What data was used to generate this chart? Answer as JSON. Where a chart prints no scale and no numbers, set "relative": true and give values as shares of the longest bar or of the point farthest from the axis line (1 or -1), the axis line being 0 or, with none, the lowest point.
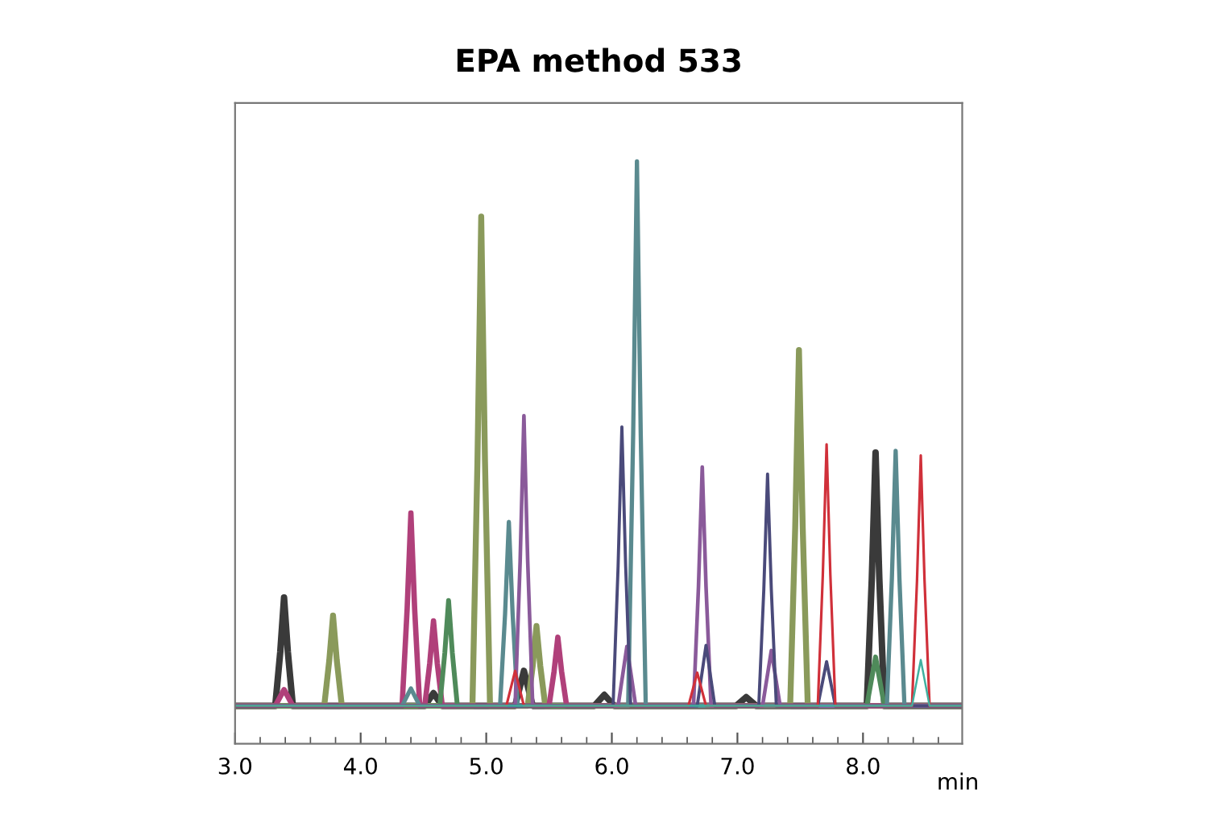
{
  "chart_data": {
    "type": "line",
    "title": "EPA method 533",
    "xlabel": "min",
    "relative": true,
    "xlim": [
      3.0,
      8.79
    ],
    "xticks": [
      {
        "value": 3,
        "label": "3.0"
      },
      {
        "value": 4,
        "label": "4.0"
      },
      {
        "value": 5,
        "label": "5.0"
      },
      {
        "value": 6,
        "label": "6.0"
      },
      {
        "value": 7,
        "label": "7.0"
      },
      {
        "value": 8,
        "label": "8.0"
      }
    ],
    "tick_labels": "x",
    "grid": false,
    "marker": "none",
    "line_style": "solid",
    "series": [
      {
        "color": "#3a3a3a",
        "x": [
          3.0,
          3.32,
          3.36,
          3.39,
          3.42,
          3.46,
          4.51,
          4.58,
          4.65,
          5.23,
          5.3,
          5.37,
          5.86,
          5.94,
          6.02,
          6.99,
          7.07,
          7.15,
          8.03,
          8.07,
          8.1,
          8.13,
          8.17,
          8.79
        ],
        "values": [
          0.065,
          0.065,
          0.158,
          0.251,
          0.158,
          0.065,
          0.065,
          0.087,
          0.065,
          0.065,
          0.125,
          0.065,
          0.065,
          0.084,
          0.065,
          0.065,
          0.08,
          0.065,
          0.065,
          0.283,
          0.5,
          0.283,
          0.065,
          0.065
        ]
      },
      {
        "color": "#8a9a5b",
        "x": [
          3.0,
          3.71,
          3.75,
          3.78,
          3.81,
          3.85,
          4.89,
          4.93,
          4.96,
          4.99,
          5.03,
          5.33,
          5.37,
          5.4,
          5.43,
          5.47,
          7.42,
          7.46,
          7.49,
          7.52,
          7.56,
          8.79
        ],
        "values": [
          0.065,
          0.065,
          0.143,
          0.22,
          0.143,
          0.065,
          0.065,
          0.485,
          0.905,
          0.485,
          0.065,
          0.065,
          0.134,
          0.202,
          0.134,
          0.065,
          0.065,
          0.371,
          0.676,
          0.371,
          0.065,
          0.065
        ]
      },
      {
        "color": "#b0407a",
        "x": [
          3.0,
          3.32,
          3.39,
          3.46,
          4.33,
          4.37,
          4.4,
          4.43,
          4.47,
          4.51,
          4.55,
          4.58,
          4.61,
          4.65,
          5.5,
          5.54,
          5.57,
          5.6,
          5.64,
          8.79
        ],
        "values": [
          0.065,
          0.065,
          0.093,
          0.065,
          0.065,
          0.231,
          0.396,
          0.231,
          0.065,
          0.065,
          0.138,
          0.211,
          0.138,
          0.065,
          0.065,
          0.124,
          0.183,
          0.124,
          0.065,
          0.065
        ]
      },
      {
        "color": "#4f8a5a",
        "x": [
          3.0,
          4.63,
          4.67,
          4.7,
          4.73,
          4.77,
          8.03,
          8.1,
          8.17,
          8.79
        ],
        "values": [
          0.065,
          0.065,
          0.156,
          0.246,
          0.156,
          0.065,
          0.065,
          0.149,
          0.065,
          0.065
        ]
      },
      {
        "color": "#5a8a8f",
        "x": [
          3.0,
          4.33,
          4.4,
          4.47,
          5.11,
          5.15,
          5.18,
          5.21,
          5.25,
          6.13,
          6.17,
          6.2,
          6.23,
          6.27,
          8.19,
          8.23,
          8.26,
          8.29,
          8.33,
          8.79
        ],
        "values": [
          0.065,
          0.065,
          0.095,
          0.065,
          0.065,
          0.223,
          0.381,
          0.223,
          0.065,
          0.065,
          0.533,
          1.0,
          0.533,
          0.065,
          0.065,
          0.284,
          0.503,
          0.284,
          0.065,
          0.065
        ]
      },
      {
        "color": "#8a5a9a",
        "x": [
          3.0,
          5.23,
          5.27,
          5.3,
          5.33,
          5.37,
          6.05,
          6.12,
          6.19,
          6.65,
          6.69,
          6.72,
          6.75,
          6.79,
          7.2,
          7.27,
          7.34,
          8.79
        ],
        "values": [
          0.065,
          0.065,
          0.314,
          0.563,
          0.314,
          0.065,
          0.065,
          0.167,
          0.065,
          0.065,
          0.27,
          0.475,
          0.27,
          0.065,
          0.065,
          0.16,
          0.065,
          0.065
        ]
      },
      {
        "color": "#4a4a7a",
        "x": [
          3.0,
          6.01,
          6.05,
          6.08,
          6.11,
          6.15,
          6.68,
          6.75,
          6.82,
          7.17,
          7.21,
          7.24,
          7.27,
          7.31,
          7.64,
          7.71,
          7.78,
          8.79
        ],
        "values": [
          0.065,
          0.065,
          0.305,
          0.544,
          0.305,
          0.065,
          0.065,
          0.169,
          0.065,
          0.065,
          0.264,
          0.463,
          0.264,
          0.065,
          0.065,
          0.141,
          0.065,
          0.065
        ]
      },
      {
        "color": "#d0303a",
        "x": [
          3.0,
          5.16,
          5.23,
          5.3,
          6.61,
          6.68,
          6.75,
          7.64,
          7.68,
          7.71,
          7.74,
          7.78,
          8.39,
          8.43,
          8.46,
          8.49,
          8.53,
          8.79
        ],
        "values": [
          0.065,
          0.065,
          0.125,
          0.065,
          0.065,
          0.122,
          0.065,
          0.065,
          0.29,
          0.514,
          0.29,
          0.065,
          0.065,
          0.28,
          0.495,
          0.28,
          0.065,
          0.065
        ]
      },
      {
        "color": "#40b0a0",
        "x": [
          3.0,
          8.39,
          8.46,
          8.53,
          8.79
        ],
        "values": [
          0.065,
          0.065,
          0.144,
          0.065,
          0.065
        ]
      }
    ]
  }
}
